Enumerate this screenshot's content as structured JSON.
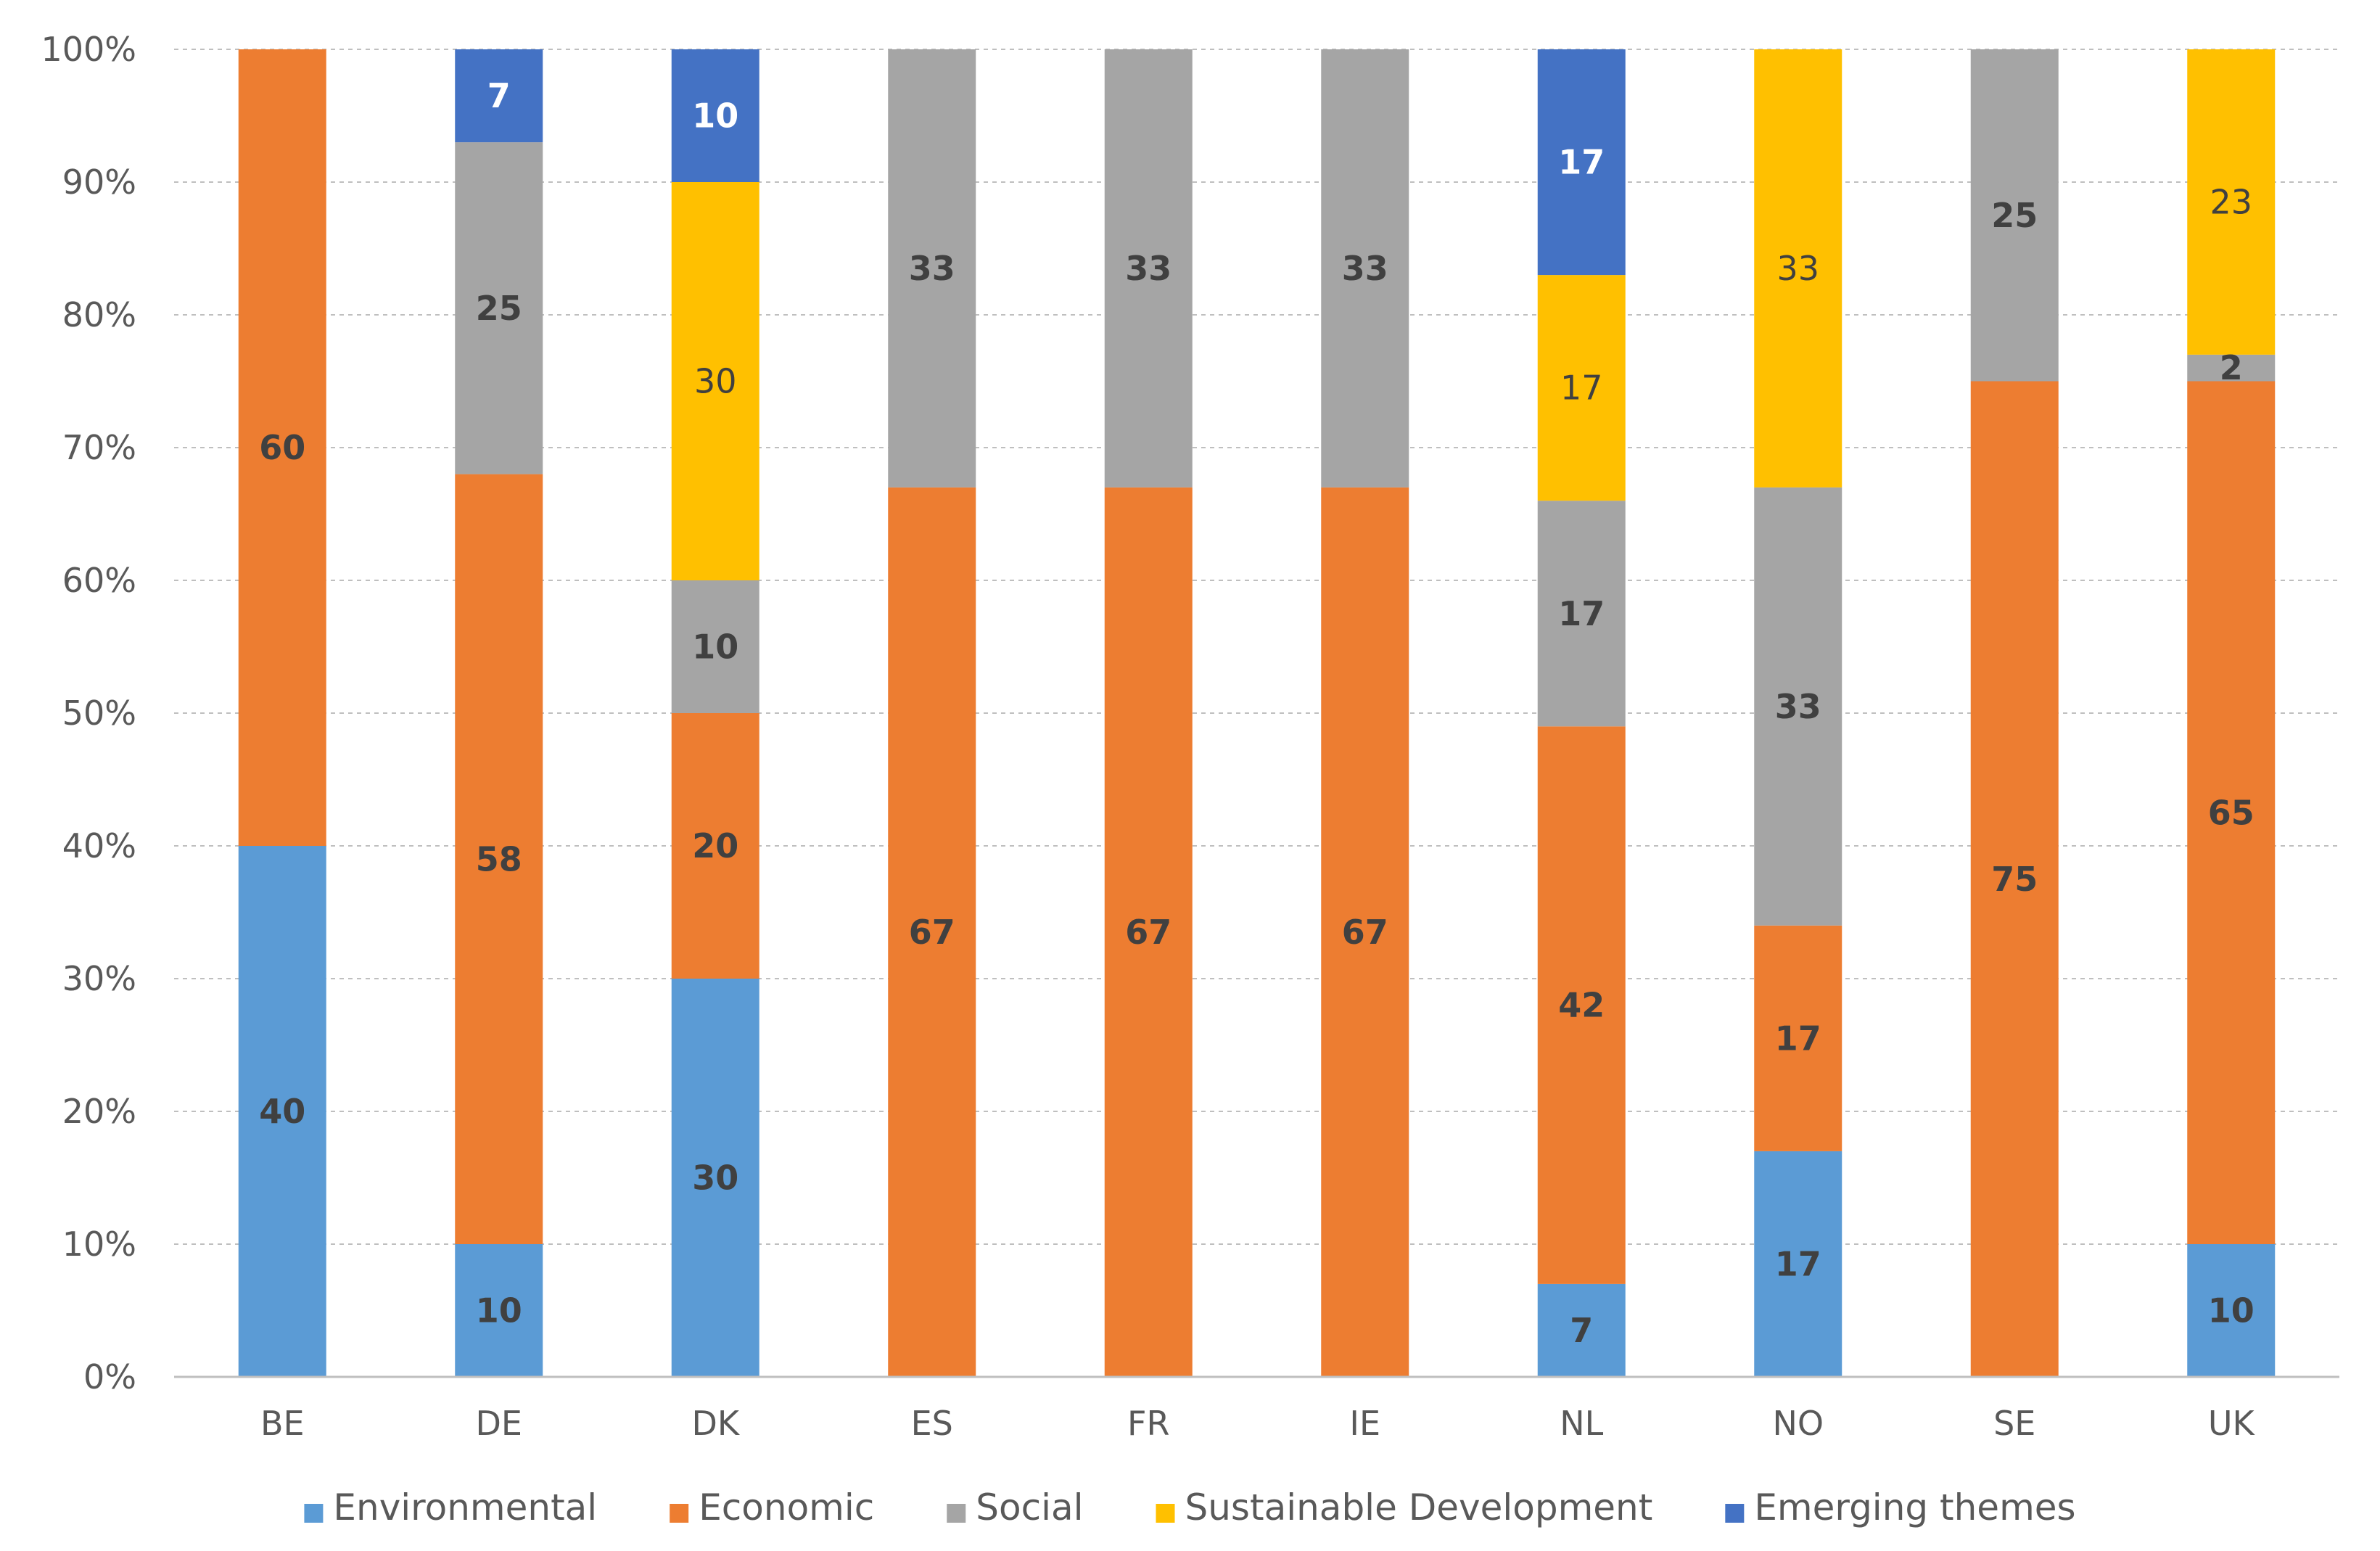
{
  "chart_data": {
    "type": "bar",
    "stacked": true,
    "percent_stacked": true,
    "title": "",
    "xlabel": "",
    "ylabel": "",
    "ylim": [
      0,
      100
    ],
    "ytick_labels": [
      "0%",
      "10%",
      "20%",
      "30%",
      "40%",
      "50%",
      "60%",
      "70%",
      "80%",
      "90%",
      "100%"
    ],
    "grid": "horizontal-dashed",
    "legend_position": "bottom",
    "categories": [
      "BE",
      "DE",
      "DK",
      "ES",
      "FR",
      "IE",
      "NL",
      "NO",
      "SE",
      "UK"
    ],
    "series": [
      {
        "name": "Environmental",
        "color": "#5B9BD5",
        "label_style": "bold",
        "values": [
          40,
          10,
          30,
          0,
          0,
          0,
          7,
          17,
          0,
          10
        ]
      },
      {
        "name": "Economic",
        "color": "#ED7D31",
        "label_style": "bold",
        "values": [
          60,
          58,
          20,
          67,
          67,
          67,
          42,
          17,
          75,
          65
        ]
      },
      {
        "name": "Social",
        "color": "#A5A5A5",
        "label_style": "bold",
        "values": [
          0,
          25,
          10,
          33,
          33,
          33,
          17,
          33,
          25,
          2
        ]
      },
      {
        "name": "Sustainable Development",
        "color": "#FFC000",
        "label_style": "normal",
        "values": [
          0,
          0,
          30,
          0,
          0,
          0,
          17,
          33,
          0,
          23
        ]
      },
      {
        "name": "Emerging themes",
        "color": "#4472C4",
        "label_style": "light",
        "values": [
          0,
          7,
          10,
          0,
          0,
          0,
          17,
          0,
          0,
          0
        ]
      }
    ]
  }
}
